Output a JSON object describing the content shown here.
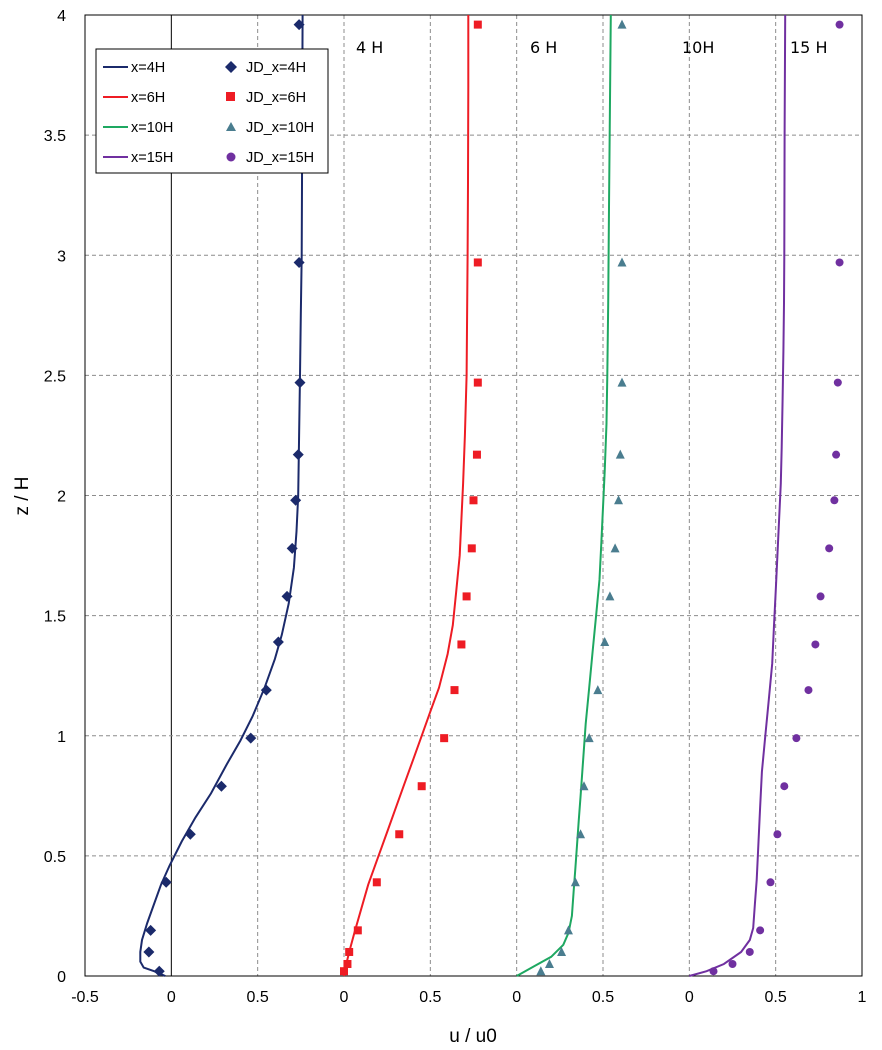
{
  "chart_data": {
    "type": "scatter",
    "xlabel": "u / u0",
    "ylabel": "z / H",
    "xlim": [
      -0.5,
      1
    ],
    "ylim": [
      0,
      4
    ],
    "x_tick_labels": [
      "-0.5",
      "0",
      "0.5",
      "0",
      "0.5",
      "0",
      "0.5",
      "0",
      "0.5",
      "1"
    ],
    "y_tick_labels": [
      "0",
      "0.5",
      "1",
      "1.5",
      "2",
      "2.5",
      "3",
      "3.5",
      "4"
    ],
    "grid": true,
    "legend_position": "top-left",
    "station_labels": [
      "4 H",
      "6 H",
      "10H",
      "15 H"
    ],
    "series": [
      {
        "name": "x=4H",
        "kind": "line",
        "color": "#1b2a6b",
        "points": [
          [
            -0.035,
            0.0
          ],
          [
            -0.1,
            0.02
          ],
          [
            -0.16,
            0.035
          ],
          [
            -0.18,
            0.06
          ],
          [
            -0.18,
            0.1
          ],
          [
            -0.17,
            0.15
          ],
          [
            -0.14,
            0.22
          ],
          [
            -0.1,
            0.3
          ],
          [
            -0.06,
            0.38
          ],
          [
            -0.01,
            0.46
          ],
          [
            0.06,
            0.56
          ],
          [
            0.14,
            0.66
          ],
          [
            0.23,
            0.76
          ],
          [
            0.32,
            0.88
          ],
          [
            0.4,
            0.98
          ],
          [
            0.47,
            1.08
          ],
          [
            0.54,
            1.2
          ],
          [
            0.6,
            1.32
          ],
          [
            0.64,
            1.42
          ],
          [
            0.68,
            1.55
          ],
          [
            0.71,
            1.7
          ],
          [
            0.725,
            1.85
          ],
          [
            0.735,
            2.0
          ],
          [
            0.74,
            2.25
          ],
          [
            0.745,
            2.5
          ],
          [
            0.75,
            2.75
          ],
          [
            0.755,
            3.0
          ],
          [
            0.757,
            3.3
          ],
          [
            0.758,
            3.6
          ],
          [
            0.76,
            4.0
          ]
        ]
      },
      {
        "name": "JD_x=4H",
        "kind": "marker",
        "marker": "diamond",
        "color": "#1b2a6b",
        "points": [
          [
            -0.07,
            0.02
          ],
          [
            -0.13,
            0.1
          ],
          [
            -0.12,
            0.19
          ],
          [
            -0.03,
            0.39
          ],
          [
            0.11,
            0.59
          ],
          [
            0.29,
            0.79
          ],
          [
            0.46,
            0.99
          ],
          [
            0.55,
            1.19
          ],
          [
            0.62,
            1.39
          ],
          [
            0.67,
            1.58
          ],
          [
            0.7,
            1.78
          ],
          [
            0.72,
            1.98
          ],
          [
            0.735,
            2.17
          ],
          [
            0.745,
            2.47
          ],
          [
            0.74,
            2.97
          ],
          [
            0.74,
            3.96
          ]
        ]
      },
      {
        "name": "x=6H",
        "kind": "line",
        "color": "#ee1c24",
        "points": [
          [
            0.0,
            0.0
          ],
          [
            0.01,
            0.04
          ],
          [
            0.03,
            0.1
          ],
          [
            0.06,
            0.18
          ],
          [
            0.1,
            0.28
          ],
          [
            0.14,
            0.38
          ],
          [
            0.19,
            0.48
          ],
          [
            0.25,
            0.6
          ],
          [
            0.3,
            0.7
          ],
          [
            0.35,
            0.8
          ],
          [
            0.4,
            0.9
          ],
          [
            0.45,
            1.0
          ],
          [
            0.5,
            1.1
          ],
          [
            0.55,
            1.2
          ],
          [
            0.6,
            1.34
          ],
          [
            0.63,
            1.46
          ],
          [
            0.65,
            1.6
          ],
          [
            0.67,
            1.75
          ],
          [
            0.68,
            1.9
          ],
          [
            0.69,
            2.05
          ],
          [
            0.7,
            2.25
          ],
          [
            0.71,
            2.5
          ],
          [
            0.713,
            2.75
          ],
          [
            0.716,
            3.0
          ],
          [
            0.718,
            3.3
          ],
          [
            0.72,
            3.7
          ],
          [
            0.72,
            4.0
          ]
        ]
      },
      {
        "name": "JD_x=6H",
        "kind": "marker",
        "marker": "square",
        "color": "#ee1c24",
        "points": [
          [
            0.0,
            0.02
          ],
          [
            0.02,
            0.05
          ],
          [
            0.03,
            0.1
          ],
          [
            0.08,
            0.19
          ],
          [
            0.19,
            0.39
          ],
          [
            0.32,
            0.59
          ],
          [
            0.45,
            0.79
          ],
          [
            0.58,
            0.99
          ],
          [
            0.64,
            1.19
          ],
          [
            0.68,
            1.38
          ],
          [
            0.71,
            1.58
          ],
          [
            0.74,
            1.78
          ],
          [
            0.75,
            1.98
          ],
          [
            0.77,
            2.17
          ],
          [
            0.775,
            2.47
          ],
          [
            0.775,
            2.97
          ],
          [
            0.775,
            3.96
          ]
        ]
      },
      {
        "name": "x=10H",
        "kind": "line",
        "color": "#1ea861",
        "points": [
          [
            0.0,
            0.0
          ],
          [
            0.1,
            0.04
          ],
          [
            0.2,
            0.08
          ],
          [
            0.27,
            0.13
          ],
          [
            0.3,
            0.18
          ],
          [
            0.32,
            0.25
          ],
          [
            0.33,
            0.35
          ],
          [
            0.34,
            0.45
          ],
          [
            0.35,
            0.55
          ],
          [
            0.36,
            0.65
          ],
          [
            0.37,
            0.75
          ],
          [
            0.38,
            0.85
          ],
          [
            0.39,
            0.95
          ],
          [
            0.4,
            1.05
          ],
          [
            0.42,
            1.2
          ],
          [
            0.44,
            1.35
          ],
          [
            0.46,
            1.5
          ],
          [
            0.48,
            1.65
          ],
          [
            0.49,
            1.8
          ],
          [
            0.5,
            1.95
          ],
          [
            0.51,
            2.1
          ],
          [
            0.52,
            2.3
          ],
          [
            0.525,
            2.5
          ],
          [
            0.53,
            2.8
          ],
          [
            0.535,
            3.2
          ],
          [
            0.54,
            3.6
          ],
          [
            0.545,
            4.0
          ]
        ]
      },
      {
        "name": "JD_x=10H",
        "kind": "marker",
        "marker": "triangle",
        "color": "#4a7d8f",
        "points": [
          [
            0.14,
            0.02
          ],
          [
            0.19,
            0.05
          ],
          [
            0.26,
            0.1
          ],
          [
            0.3,
            0.19
          ],
          [
            0.34,
            0.39
          ],
          [
            0.37,
            0.59
          ],
          [
            0.39,
            0.79
          ],
          [
            0.42,
            0.99
          ],
          [
            0.47,
            1.19
          ],
          [
            0.51,
            1.39
          ],
          [
            0.54,
            1.58
          ],
          [
            0.57,
            1.78
          ],
          [
            0.59,
            1.98
          ],
          [
            0.6,
            2.17
          ],
          [
            0.61,
            2.47
          ],
          [
            0.61,
            2.97
          ],
          [
            0.61,
            3.96
          ]
        ]
      },
      {
        "name": "x=15H",
        "kind": "line",
        "color": "#7030a0",
        "points": [
          [
            0.0,
            0.0
          ],
          [
            0.1,
            0.02
          ],
          [
            0.2,
            0.05
          ],
          [
            0.3,
            0.1
          ],
          [
            0.35,
            0.15
          ],
          [
            0.37,
            0.2
          ],
          [
            0.38,
            0.3
          ],
          [
            0.39,
            0.4
          ],
          [
            0.4,
            0.55
          ],
          [
            0.41,
            0.7
          ],
          [
            0.42,
            0.85
          ],
          [
            0.44,
            1.0
          ],
          [
            0.46,
            1.15
          ],
          [
            0.48,
            1.3
          ],
          [
            0.49,
            1.45
          ],
          [
            0.5,
            1.6
          ],
          [
            0.51,
            1.75
          ],
          [
            0.52,
            1.9
          ],
          [
            0.53,
            2.05
          ],
          [
            0.535,
            2.2
          ],
          [
            0.54,
            2.4
          ],
          [
            0.545,
            2.6
          ],
          [
            0.548,
            2.8
          ],
          [
            0.55,
            3.0
          ],
          [
            0.552,
            3.5
          ],
          [
            0.555,
            4.0
          ]
        ]
      },
      {
        "name": "JD_x=15H",
        "kind": "marker",
        "marker": "circle",
        "color": "#7030a0",
        "points": [
          [
            0.14,
            0.02
          ],
          [
            0.25,
            0.05
          ],
          [
            0.35,
            0.1
          ],
          [
            0.41,
            0.19
          ],
          [
            0.47,
            0.39
          ],
          [
            0.51,
            0.59
          ],
          [
            0.55,
            0.79
          ],
          [
            0.62,
            0.99
          ],
          [
            0.69,
            1.19
          ],
          [
            0.73,
            1.38
          ],
          [
            0.76,
            1.58
          ],
          [
            0.81,
            1.78
          ],
          [
            0.84,
            1.98
          ],
          [
            0.85,
            2.17
          ],
          [
            0.86,
            2.47
          ],
          [
            0.87,
            2.97
          ],
          [
            0.87,
            3.96
          ]
        ]
      }
    ]
  }
}
